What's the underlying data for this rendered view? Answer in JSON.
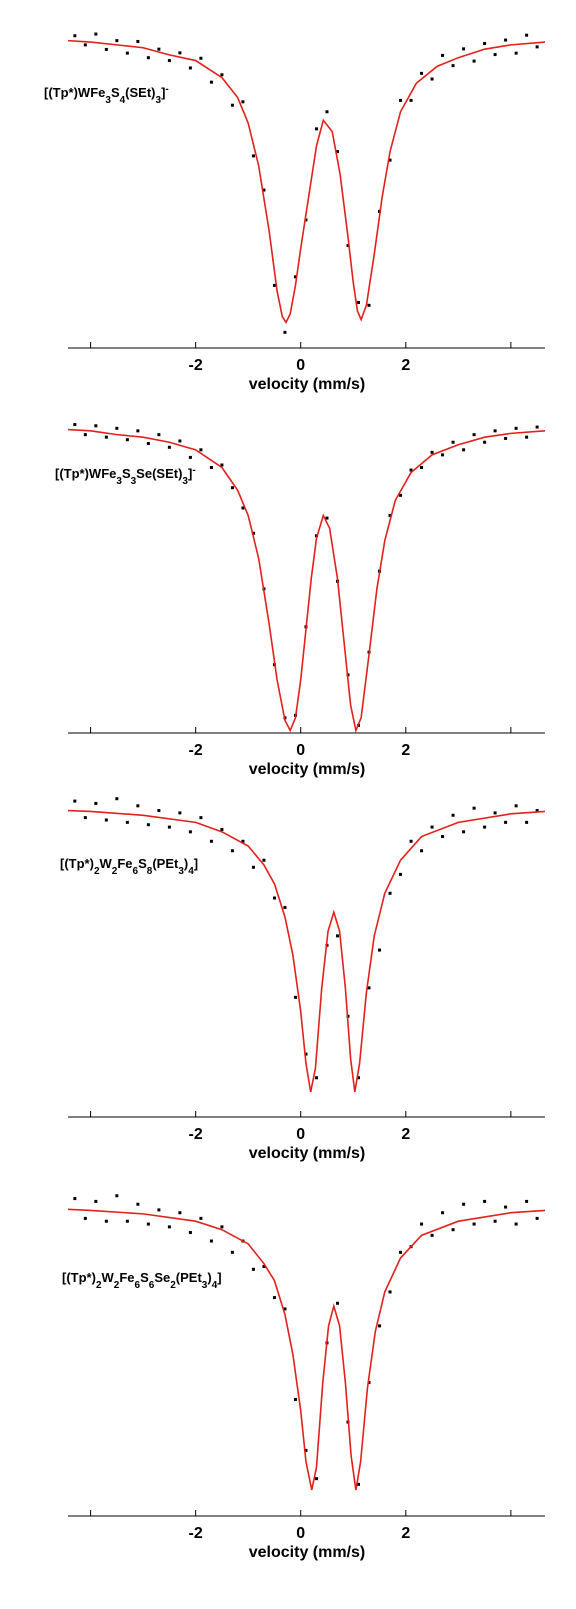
{
  "chart_data": [
    {
      "type": "scatter",
      "label": "[(Tp*)WFe3S4(SEt)3]-",
      "xlabel": "velocity (mm/s)",
      "xlim": [
        -4.43,
        4.65
      ],
      "ylim": [
        89.1,
        100.8
      ],
      "xticks": [
        -2,
        0,
        2
      ],
      "minor_xticks": [
        -4,
        4
      ],
      "series": [
        {
          "kind": "points",
          "color": "#000000",
          "x": [
            -4.3,
            -4.1,
            -3.9,
            -3.7,
            -3.5,
            -3.3,
            -3.1,
            -2.9,
            -2.7,
            -2.5,
            -2.3,
            -2.1,
            -1.9,
            -1.7,
            -1.5,
            -1.3,
            -1.1,
            -0.9,
            -0.7,
            -0.5,
            -0.3,
            -0.1,
            0.1,
            0.3,
            0.5,
            0.7,
            0.9,
            1.1,
            1.3,
            1.5,
            1.7,
            1.9,
            2.1,
            2.3,
            2.5,
            2.7,
            2.9,
            3.1,
            3.3,
            3.5,
            3.7,
            3.9,
            4.1,
            4.3,
            4.5
          ],
          "values": [
            100.07,
            99.75,
            100.13,
            99.59,
            99.9,
            99.46,
            99.87,
            99.3,
            99.6,
            99.2,
            99.47,
            98.94,
            99.28,
            98.44,
            98.7,
            97.63,
            97.75,
            95.85,
            94.65,
            91.3,
            89.65,
            91.6,
            93.6,
            96.8,
            97.4,
            96.0,
            92.7,
            90.7,
            90.6,
            93.9,
            95.7,
            97.8,
            97.8,
            98.75,
            98.55,
            99.38,
            99.02,
            99.61,
            99.18,
            99.8,
            99.41,
            99.92,
            99.46,
            100.09,
            99.68
          ]
        },
        {
          "kind": "fit",
          "color": "#e3201b",
          "x": [
            -4.43,
            -4,
            -3.5,
            -3,
            -2.5,
            -2,
            -1.5,
            -1.2,
            -1,
            -0.8,
            -0.6,
            -0.45,
            -0.35,
            -0.28,
            -0.2,
            -0.1,
            0,
            0.15,
            0.3,
            0.43,
            0.6,
            0.75,
            0.9,
            1,
            1.08,
            1.15,
            1.25,
            1.4,
            1.55,
            1.7,
            1.9,
            2.2,
            2.6,
            3,
            3.5,
            4,
            4.65
          ],
          "values": [
            99.9,
            99.85,
            99.75,
            99.65,
            99.4,
            99.2,
            98.6,
            97.9,
            97.0,
            95.5,
            93.2,
            91.1,
            90.2,
            90.0,
            90.3,
            91.3,
            92.6,
            94.4,
            96.2,
            97.1,
            96.7,
            95.2,
            93.0,
            91.4,
            90.4,
            90.1,
            90.6,
            92.4,
            94.4,
            96.0,
            97.4,
            98.4,
            99.0,
            99.3,
            99.6,
            99.75,
            99.85
          ]
        }
      ]
    },
    {
      "type": "scatter",
      "label": "[(Tp*)WFe3S3Se(SEt)3]-",
      "xlabel": "velocity (mm/s)",
      "xlim": [
        -4.43,
        4.65
      ],
      "ylim": [
        87.9,
        101.07
      ],
      "xticks": [
        -2,
        0,
        2
      ],
      "minor_xticks": [
        -4,
        4
      ],
      "series": [
        {
          "kind": "points",
          "color": "#000000",
          "x": [
            -4.3,
            -4.1,
            -3.9,
            -3.7,
            -3.5,
            -3.3,
            -3.1,
            -2.9,
            -2.7,
            -2.5,
            -2.3,
            -2.1,
            -1.9,
            -1.7,
            -1.5,
            -1.3,
            -1.1,
            -0.9,
            -0.7,
            -0.5,
            -0.3,
            -0.1,
            0.1,
            0.3,
            0.5,
            0.7,
            0.9,
            1.1,
            1.3,
            1.5,
            1.7,
            1.9,
            2.1,
            2.3,
            2.5,
            2.7,
            2.9,
            3.1,
            3.3,
            3.5,
            3.7,
            3.9,
            4.1,
            4.3,
            4.5
          ],
          "values": [
            100.1,
            99.7,
            100.05,
            99.6,
            99.95,
            99.5,
            99.85,
            99.35,
            99.7,
            99.2,
            99.45,
            98.8,
            99.1,
            98.4,
            98.5,
            97.6,
            96.8,
            95.8,
            93.6,
            90.6,
            88.5,
            88.6,
            92.1,
            95.7,
            96.4,
            93.9,
            90.2,
            88.2,
            91.1,
            94.3,
            96.5,
            97.3,
            98.3,
            98.4,
            99.0,
            98.9,
            99.4,
            99.1,
            99.7,
            99.4,
            99.85,
            99.55,
            99.95,
            99.6,
            100.0
          ]
        },
        {
          "kind": "fit",
          "color": "#e3201b",
          "x": [
            -4.43,
            -4,
            -3.5,
            -3,
            -2.5,
            -2,
            -1.5,
            -1.2,
            -1,
            -0.8,
            -0.6,
            -0.45,
            -0.3,
            -0.2,
            -0.1,
            0,
            0.1,
            0.2,
            0.3,
            0.43,
            0.55,
            0.7,
            0.85,
            0.95,
            1.05,
            1.15,
            1.3,
            1.45,
            1.6,
            1.8,
            2.1,
            2.5,
            3,
            3.5,
            4,
            4.65
          ],
          "values": [
            99.9,
            99.85,
            99.7,
            99.6,
            99.4,
            99.1,
            98.4,
            97.5,
            96.5,
            94.8,
            92.2,
            90.0,
            88.4,
            88.0,
            88.5,
            90.0,
            92.0,
            94.0,
            95.6,
            96.5,
            96.0,
            94.0,
            91.0,
            89.0,
            88.0,
            88.5,
            91.0,
            93.6,
            95.5,
            97.1,
            98.2,
            98.9,
            99.3,
            99.6,
            99.75,
            99.85
          ]
        }
      ]
    },
    {
      "type": "scatter",
      "label": "[(Tp*)2W2Fe6S8(PEt3)4]",
      "xlabel": "velocity (mm/s)",
      "xlim": [
        -4.43,
        4.65
      ],
      "ylim": [
        93.47,
        100.49
      ],
      "xticks": [
        -2,
        0,
        2
      ],
      "minor_xticks": [
        -4,
        4
      ],
      "series": [
        {
          "kind": "points",
          "color": "#000000",
          "x": [
            -4.3,
            -4.1,
            -3.9,
            -3.7,
            -3.5,
            -3.3,
            -3.1,
            -2.9,
            -2.7,
            -2.5,
            -2.3,
            -2.1,
            -1.9,
            -1.7,
            -1.5,
            -1.3,
            -1.1,
            -0.9,
            -0.7,
            -0.5,
            -0.3,
            -0.1,
            0.1,
            0.3,
            0.5,
            0.7,
            0.9,
            1.1,
            1.3,
            1.5,
            1.7,
            1.9,
            2.1,
            2.3,
            2.5,
            2.7,
            2.9,
            3.1,
            3.3,
            3.5,
            3.7,
            3.9,
            4.1,
            4.3,
            4.5
          ],
          "values": [
            100.15,
            99.8,
            100.1,
            99.75,
            100.2,
            99.7,
            100.05,
            99.65,
            99.95,
            99.6,
            99.9,
            99.5,
            99.8,
            99.3,
            99.55,
            99.1,
            99.3,
            98.75,
            98.9,
            98.1,
            97.9,
            96.0,
            94.8,
            94.3,
            97.1,
            97.3,
            95.6,
            94.3,
            96.2,
            97.0,
            98.2,
            98.6,
            99.3,
            99.1,
            99.6,
            99.4,
            99.85,
            99.5,
            100.0,
            99.6,
            99.9,
            99.7,
            100.05,
            99.7,
            99.95
          ]
        },
        {
          "kind": "fit",
          "color": "#e3201b",
          "x": [
            -4.43,
            -4,
            -3,
            -2,
            -1.5,
            -1,
            -0.7,
            -0.5,
            -0.3,
            -0.15,
            0,
            0.1,
            0.19,
            0.28,
            0.4,
            0.52,
            0.63,
            0.74,
            0.85,
            0.95,
            1.03,
            1.12,
            1.25,
            1.4,
            1.6,
            1.9,
            2.3,
            3,
            4,
            4.65
          ],
          "values": [
            99.95,
            99.93,
            99.85,
            99.7,
            99.5,
            99.2,
            98.8,
            98.4,
            97.7,
            96.9,
            95.7,
            94.6,
            94.0,
            94.5,
            96.2,
            97.4,
            97.8,
            97.4,
            96.2,
            94.7,
            94.0,
            94.6,
            96.1,
            97.3,
            98.2,
            98.9,
            99.4,
            99.7,
            99.88,
            99.93
          ]
        }
      ]
    },
    {
      "type": "scatter",
      "label": "[(Tp*)2W2Fe6S6Se2(PEt3)4]",
      "xlabel": "velocity (mm/s)",
      "xlim": [
        -4.43,
        4.65
      ],
      "ylim": [
        94.54,
        100.39
      ],
      "xticks": [
        -2,
        0,
        2
      ],
      "minor_xticks": [
        -4,
        4
      ],
      "series": [
        {
          "kind": "points",
          "color": "#000000",
          "x": [
            -4.3,
            -4.1,
            -3.9,
            -3.7,
            -3.5,
            -3.3,
            -3.1,
            -2.9,
            -2.7,
            -2.5,
            -2.3,
            -2.1,
            -1.9,
            -1.7,
            -1.5,
            -1.3,
            -1.1,
            -0.9,
            -0.7,
            -0.5,
            -0.3,
            -0.1,
            0.1,
            0.3,
            0.5,
            0.7,
            0.9,
            1.1,
            1.3,
            1.5,
            1.7,
            1.9,
            2.1,
            2.3,
            2.5,
            2.7,
            2.9,
            3.1,
            3.3,
            3.5,
            3.7,
            3.9,
            4.1,
            4.3,
            4.5
          ],
          "values": [
            100.15,
            99.8,
            100.1,
            99.75,
            100.2,
            99.75,
            100.05,
            99.7,
            99.95,
            99.65,
            99.9,
            99.55,
            99.8,
            99.4,
            99.65,
            99.2,
            99.4,
            98.9,
            98.95,
            98.4,
            98.2,
            96.6,
            95.7,
            95.2,
            97.6,
            98.3,
            96.2,
            95.1,
            96.9,
            97.9,
            98.5,
            99.2,
            99.3,
            99.7,
            99.5,
            99.9,
            99.6,
            100.05,
            99.7,
            100.1,
            99.75,
            100.0,
            99.7,
            100.1,
            99.8
          ]
        },
        {
          "kind": "fit",
          "color": "#e3201b",
          "x": [
            -4.43,
            -4,
            -3,
            -2,
            -1.5,
            -1,
            -0.7,
            -0.5,
            -0.3,
            -0.15,
            0,
            0.1,
            0.21,
            0.3,
            0.42,
            0.53,
            0.63,
            0.74,
            0.85,
            0.96,
            1.05,
            1.14,
            1.27,
            1.42,
            1.6,
            1.9,
            2.3,
            3,
            4,
            4.65
          ],
          "values": [
            99.96,
            99.94,
            99.88,
            99.75,
            99.6,
            99.35,
            99.0,
            98.7,
            98.1,
            97.4,
            96.4,
            95.5,
            95.0,
            95.4,
            96.9,
            97.9,
            98.25,
            97.9,
            96.9,
            95.6,
            95.0,
            95.5,
            96.8,
            97.8,
            98.5,
            99.1,
            99.5,
            99.75,
            99.9,
            99.94
          ]
        }
      ]
    }
  ]
}
